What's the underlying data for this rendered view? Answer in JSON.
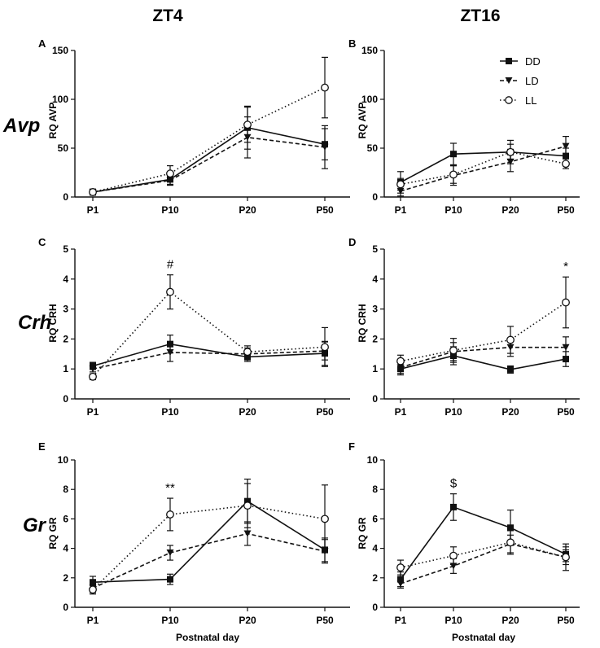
{
  "figure": {
    "column_titles": [
      "ZT4",
      "ZT16"
    ],
    "row_labels": [
      "Avp",
      "Crh",
      "Gr"
    ],
    "xlabel": "Postnatal day",
    "legend": [
      {
        "name": "DD",
        "style": "solid",
        "marker": "square-filled"
      },
      {
        "name": "LD",
        "style": "dashed",
        "marker": "triangle-down-filled"
      },
      {
        "name": "LL",
        "style": "dotted",
        "marker": "circle-open"
      }
    ]
  },
  "chart_data": [
    {
      "panel": "A",
      "type": "line",
      "title": "ZT4",
      "ylabel": "RQ AVP",
      "categories": [
        "P1",
        "P10",
        "P20",
        "P50"
      ],
      "ylim": [
        0,
        150
      ],
      "yticks": [
        0,
        50,
        100,
        150
      ],
      "series": [
        {
          "name": "DD",
          "values": [
            5,
            18,
            71,
            54
          ],
          "errors": [
            3,
            5,
            22,
            16
          ]
        },
        {
          "name": "LD",
          "values": [
            5,
            17,
            61,
            51
          ],
          "errors": [
            3,
            5,
            21,
            22
          ]
        },
        {
          "name": "LL",
          "values": [
            5,
            24,
            74,
            112
          ],
          "errors": [
            3,
            8,
            18,
            31
          ]
        }
      ],
      "annotations": []
    },
    {
      "panel": "B",
      "type": "line",
      "title": "ZT16",
      "ylabel": "RQ AVP",
      "categories": [
        "P1",
        "P10",
        "P20",
        "P50"
      ],
      "ylim": [
        0,
        150
      ],
      "yticks": [
        0,
        50,
        100,
        150
      ],
      "series": [
        {
          "name": "DD",
          "values": [
            15,
            44,
            46,
            42
          ],
          "errors": [
            11,
            11,
            8,
            8
          ]
        },
        {
          "name": "LD",
          "values": [
            6,
            22,
            36,
            52
          ],
          "errors": [
            5,
            10,
            10,
            10
          ]
        },
        {
          "name": "LL",
          "values": [
            13,
            23,
            46,
            34
          ],
          "errors": [
            6,
            9,
            12,
            5
          ]
        }
      ],
      "annotations": []
    },
    {
      "panel": "C",
      "type": "line",
      "title": "ZT4",
      "ylabel": "RQ CRH",
      "categories": [
        "P1",
        "P10",
        "P20",
        "P50"
      ],
      "ylim": [
        0,
        5
      ],
      "yticks": [
        0,
        1,
        2,
        3,
        4,
        5
      ],
      "series": [
        {
          "name": "DD",
          "values": [
            1.1,
            1.83,
            1.4,
            1.52
          ],
          "errors": [
            0.12,
            0.3,
            0.15,
            0.4
          ]
        },
        {
          "name": "LD",
          "values": [
            1.0,
            1.55,
            1.5,
            1.6
          ],
          "errors": [
            0.1,
            0.3,
            0.2,
            0.3
          ]
        },
        {
          "name": "LL",
          "values": [
            0.74,
            3.57,
            1.57,
            1.73
          ],
          "errors": [
            0.1,
            0.57,
            0.2,
            0.65
          ]
        }
      ],
      "annotations": [
        {
          "category": "P10",
          "text": "#"
        }
      ]
    },
    {
      "panel": "D",
      "type": "line",
      "title": "ZT16",
      "ylabel": "RQ CRH",
      "categories": [
        "P1",
        "P10",
        "P20",
        "P50"
      ],
      "ylim": [
        0,
        5
      ],
      "yticks": [
        0,
        1,
        2,
        3,
        4,
        5
      ],
      "series": [
        {
          "name": "DD",
          "values": [
            1.0,
            1.44,
            0.98,
            1.33
          ],
          "errors": [
            0.2,
            0.3,
            0.12,
            0.25
          ]
        },
        {
          "name": "LD",
          "values": [
            1.05,
            1.58,
            1.72,
            1.72
          ],
          "errors": [
            0.2,
            0.3,
            0.3,
            0.35
          ]
        },
        {
          "name": "LL",
          "values": [
            1.26,
            1.62,
            1.97,
            3.22
          ],
          "errors": [
            0.2,
            0.4,
            0.45,
            0.85
          ]
        }
      ],
      "annotations": [
        {
          "category": "P50",
          "text": "*"
        }
      ]
    },
    {
      "panel": "E",
      "type": "line",
      "title": "ZT4",
      "ylabel": "RQ GR",
      "xlabel": "Postnatal day",
      "categories": [
        "P1",
        "P10",
        "P20",
        "P50"
      ],
      "ylim": [
        0,
        10
      ],
      "yticks": [
        0,
        2,
        4,
        6,
        8,
        10
      ],
      "series": [
        {
          "name": "DD",
          "values": [
            1.7,
            1.9,
            7.2,
            3.9
          ],
          "errors": [
            0.4,
            0.35,
            1.5,
            0.8
          ]
        },
        {
          "name": "LD",
          "values": [
            1.3,
            3.7,
            5.0,
            3.8
          ],
          "errors": [
            0.3,
            0.5,
            0.8,
            0.8
          ]
        },
        {
          "name": "LL",
          "values": [
            1.2,
            6.3,
            6.9,
            6.0
          ],
          "errors": [
            0.3,
            1.1,
            1.5,
            2.3
          ]
        }
      ],
      "annotations": [
        {
          "category": "P10",
          "text": "**"
        }
      ]
    },
    {
      "panel": "F",
      "type": "line",
      "title": "ZT16",
      "ylabel": "RQ GR",
      "xlabel": "Postnatal day",
      "categories": [
        "P1",
        "P10",
        "P20",
        "P50"
      ],
      "ylim": [
        0,
        10
      ],
      "yticks": [
        0,
        2,
        4,
        6,
        8,
        10
      ],
      "series": [
        {
          "name": "DD",
          "values": [
            1.9,
            6.8,
            5.4,
            3.6
          ],
          "errors": [
            0.5,
            0.9,
            1.2,
            0.5
          ]
        },
        {
          "name": "LD",
          "values": [
            1.6,
            2.8,
            4.3,
            3.4
          ],
          "errors": [
            0.3,
            0.5,
            0.6,
            0.9
          ]
        },
        {
          "name": "LL",
          "values": [
            2.7,
            3.5,
            4.4,
            3.4
          ],
          "errors": [
            0.5,
            0.6,
            0.8,
            0.5
          ]
        }
      ],
      "annotations": [
        {
          "category": "P10",
          "text": "$"
        }
      ]
    }
  ]
}
